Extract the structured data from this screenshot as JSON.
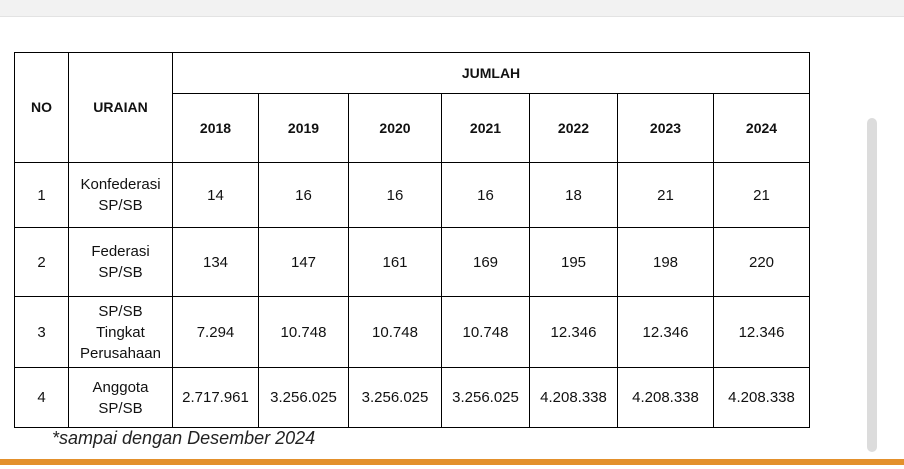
{
  "table": {
    "no_label": "NO",
    "uraian_label": "URAIAN",
    "jumlah_label": "JUMLAH",
    "years": [
      "2018",
      "2019",
      "2020",
      "2021",
      "2022",
      "2023",
      "2024"
    ],
    "rows": [
      {
        "no": "1",
        "uraian": [
          "Konfederasi",
          "SP/SB"
        ],
        "values": [
          "14",
          "16",
          "16",
          "16",
          "18",
          "21",
          "21"
        ]
      },
      {
        "no": "2",
        "uraian": [
          "Federasi",
          "SP/SB"
        ],
        "values": [
          "134",
          "147",
          "161",
          "169",
          "195",
          "198",
          "220"
        ]
      },
      {
        "no": "3",
        "uraian": [
          "SP/SB",
          "Tingkat",
          "Perusahaan"
        ],
        "values": [
          "7.294",
          "10.748",
          "10.748",
          "10.748",
          "12.346",
          "12.346",
          "12.346"
        ]
      },
      {
        "no": "4",
        "uraian": [
          "Anggota",
          "SP/SB"
        ],
        "values": [
          "2.717.961",
          "3.256.025",
          "3.256.025",
          "3.256.025",
          "4.208.338",
          "4.208.338",
          "4.208.338"
        ]
      }
    ]
  },
  "footnote": "*sampai dengan Desember 2024",
  "colors": {
    "accent_bar": "#e3902c"
  }
}
